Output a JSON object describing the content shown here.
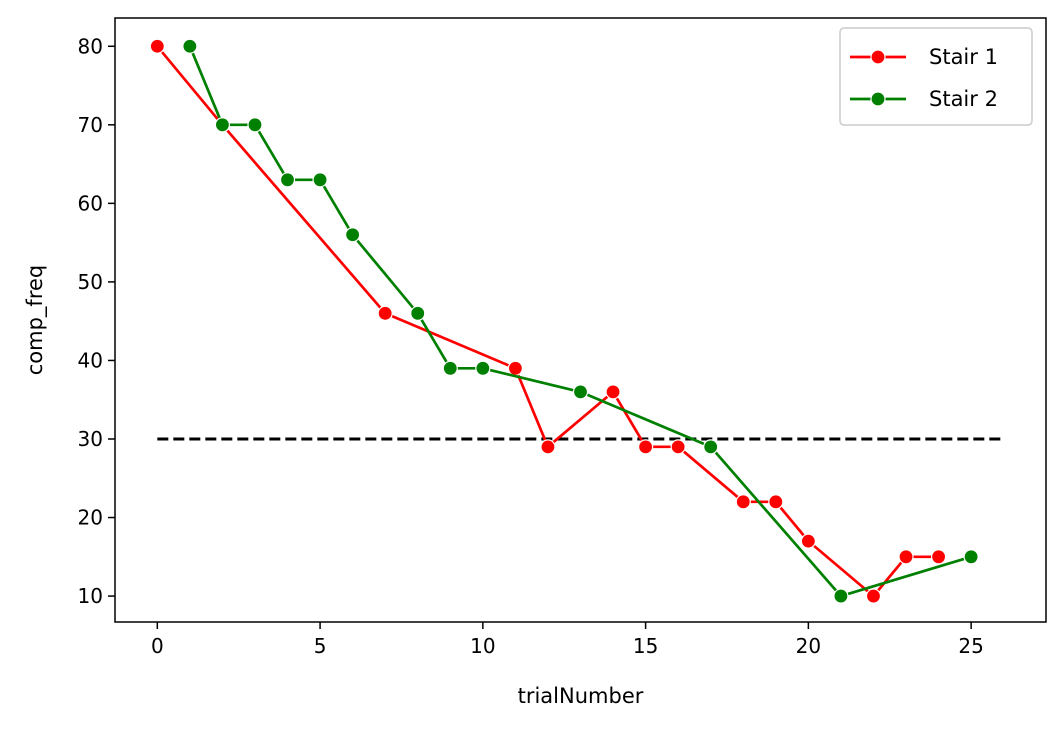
{
  "chart_data": {
    "type": "line",
    "title": "",
    "xlabel": "trialNumber",
    "ylabel": "comp_freq",
    "xlim": [
      -1.3,
      27.3
    ],
    "ylim": [
      6.7,
      83.6
    ],
    "xticks": [
      0,
      5,
      10,
      15,
      20,
      25
    ],
    "yticks": [
      10,
      20,
      30,
      40,
      50,
      60,
      70,
      80
    ],
    "grid": false,
    "legend_position": "top-right",
    "series": [
      {
        "name": "Stair 1",
        "color": "#ff0000",
        "marker": "circle",
        "x": [
          0,
          2,
          7,
          11,
          12,
          14,
          15,
          16,
          18,
          19,
          20,
          22,
          23,
          24
        ],
        "y": [
          80,
          70,
          46,
          39,
          29,
          36,
          29,
          29,
          22,
          22,
          17,
          10,
          15,
          15
        ]
      },
      {
        "name": "Stair 2",
        "color": "#008000",
        "marker": "circle",
        "x": [
          1,
          2,
          3,
          4,
          5,
          6,
          8,
          9,
          10,
          13,
          17,
          21,
          25
        ],
        "y": [
          80,
          70,
          70,
          63,
          63,
          56,
          46,
          39,
          39,
          36,
          29,
          10,
          15
        ]
      }
    ],
    "reference_line": {
      "style": "dashed",
      "color": "#000000",
      "x": [
        0,
        26
      ],
      "y": 30
    }
  }
}
